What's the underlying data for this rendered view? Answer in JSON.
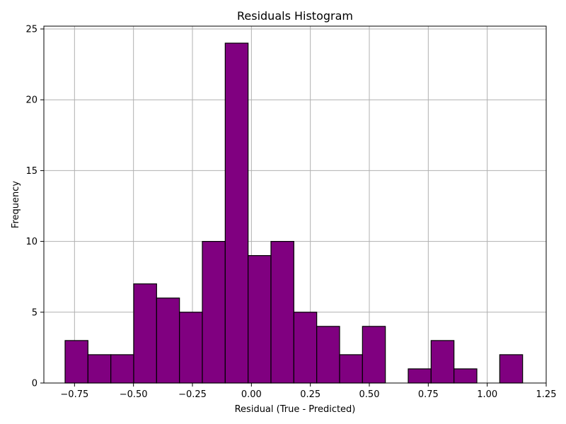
{
  "chart_data": {
    "type": "histogram",
    "title": "Residuals Histogram",
    "xlabel": "Residual (True - Predicted)",
    "ylabel": "Frequency",
    "xlim": [
      -0.88,
      1.25
    ],
    "ylim": [
      0,
      25.2
    ],
    "bin_edges": [
      -0.79,
      -0.693,
      -0.596,
      -0.499,
      -0.402,
      -0.305,
      -0.208,
      -0.111,
      -0.014,
      0.083,
      0.18,
      0.277,
      0.374,
      0.471,
      0.568,
      0.665,
      0.762,
      0.859,
      0.956,
      1.053,
      1.15
    ],
    "counts": [
      3,
      2,
      2,
      7,
      6,
      5,
      10,
      24,
      9,
      10,
      5,
      4,
      2,
      4,
      0,
      1,
      3,
      1,
      0,
      2
    ],
    "x_ticks": [
      -0.75,
      -0.5,
      -0.25,
      0.0,
      0.25,
      0.5,
      0.75,
      1.0,
      1.25
    ],
    "x_tick_labels": [
      "−0.75",
      "−0.50",
      "−0.25",
      "0.00",
      "0.25",
      "0.50",
      "0.75",
      "1.00",
      "1.25"
    ],
    "y_ticks": [
      0,
      5,
      10,
      15,
      20,
      25
    ],
    "y_tick_labels": [
      "0",
      "5",
      "10",
      "15",
      "20",
      "25"
    ],
    "grid": true,
    "colors": {
      "bar_fill": "#800080",
      "bar_edge": "#000000",
      "grid": "#b0b0b0"
    }
  }
}
